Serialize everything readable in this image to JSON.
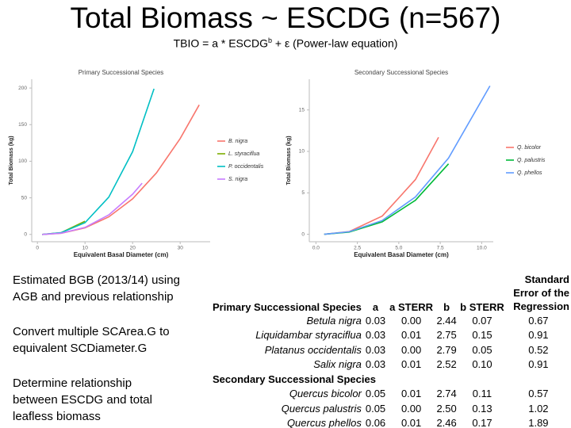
{
  "title": "Total Biomass ~ ESCDG (n=567)",
  "subtitle": {
    "pre": "TBIO = a * ESCDG",
    "sup": "b",
    "post": " + ε (Power-law equation)"
  },
  "chart_data": [
    {
      "type": "line",
      "title": "Primary Successional Species",
      "x_label": "Equivalent Basal Diameter (cm)",
      "y_label": "Total Biomass (kg)",
      "xlim": [
        -1.2,
        36.3
      ],
      "ylim": [
        -10,
        212
      ],
      "xticks": [
        0,
        10,
        20,
        30
      ],
      "yticks": [
        0,
        50,
        100,
        150,
        200
      ],
      "series": [
        {
          "name": "B. nigra",
          "color": "#f8766d",
          "x": [
            1,
            5,
            10,
            15,
            20,
            25,
            30,
            34
          ],
          "values": [
            0,
            1.6,
            8.9,
            24,
            48.6,
            84,
            131,
            177
          ]
        },
        {
          "name": "L. styraciflua",
          "color": "#7cae00",
          "x": [
            1,
            5,
            10
          ],
          "values": [
            0,
            2.5,
            18
          ]
        },
        {
          "name": "P. occidentalis",
          "color": "#00bfc4",
          "x": [
            1,
            5,
            10,
            15,
            20,
            24.5
          ],
          "values": [
            0,
            2.4,
            16,
            51,
            113,
            199
          ]
        },
        {
          "name": "S. nigra",
          "color": "#c77cff",
          "x": [
            1,
            5,
            10,
            15,
            20,
            22
          ],
          "values": [
            0,
            1.7,
            9.6,
            26.7,
            55,
            70
          ]
        }
      ]
    },
    {
      "type": "line",
      "title": "Secondary Successional Species",
      "x_label": "Equivalent Basal Diameter (cm)",
      "y_label": "Total Biomass (kg)",
      "xlim": [
        -0.4,
        10.7
      ],
      "ylim": [
        -0.9,
        18.7
      ],
      "xticks": [
        {
          "value": 0,
          "label": "0.0"
        },
        2.5,
        {
          "value": 5,
          "label": "5.0"
        },
        7.5,
        {
          "value": 10,
          "label": "10.0"
        }
      ],
      "yticks": [
        0,
        5,
        10,
        15
      ],
      "series": [
        {
          "name": "Q. bicolor",
          "color": "#f8766d",
          "x": [
            0.5,
            2,
            4,
            6,
            7.4
          ],
          "values": [
            0,
            0.32,
            2.2,
            6.6,
            11.7
          ]
        },
        {
          "name": "Q. palustris",
          "color": "#00ba38",
          "x": [
            0.5,
            2,
            4,
            6,
            8
          ],
          "values": [
            0,
            0.27,
            1.5,
            4.1,
            8.5
          ]
        },
        {
          "name": "Q. phellos",
          "color": "#619cff",
          "x": [
            0.5,
            2,
            4,
            6,
            8,
            10.5
          ],
          "values": [
            0,
            0.3,
            1.66,
            4.5,
            9.2,
            17.9
          ]
        }
      ]
    }
  ],
  "bullets": [
    "Estimated BGB (2013/14) using AGB and previous relationship",
    "Convert multiple SCArea.G to equivalent SCDiameter.G",
    "Determine relationship between ESCDG and total leafless biomass"
  ],
  "table": {
    "header": [
      "Primary Successional Species",
      "a",
      "a STERR",
      "b",
      "b STERR",
      "Standard Error of the Regression"
    ],
    "rows": [
      [
        "Betula nigra",
        "0.03",
        "0.00",
        "2.44",
        "0.07",
        "0.67"
      ],
      [
        "Liquidambar styraciflua",
        "0.03",
        "0.01",
        "2.75",
        "0.15",
        "0.91"
      ],
      [
        "Platanus occidentalis",
        "0.03",
        "0.00",
        "2.79",
        "0.05",
        "0.52"
      ],
      [
        "Salix nigra",
        "0.03",
        "0.01",
        "2.52",
        "0.10",
        "0.91"
      ],
      [
        "Secondary Successional Species"
      ],
      [
        "Quercus bicolor",
        "0.05",
        "0.01",
        "2.74",
        "0.11",
        "0.57"
      ],
      [
        "Quercus palustris",
        "0.05",
        "0.00",
        "2.50",
        "0.13",
        "1.02"
      ],
      [
        "Quercus phellos",
        "0.06",
        "0.01",
        "2.46",
        "0.17",
        "1.89"
      ]
    ]
  }
}
